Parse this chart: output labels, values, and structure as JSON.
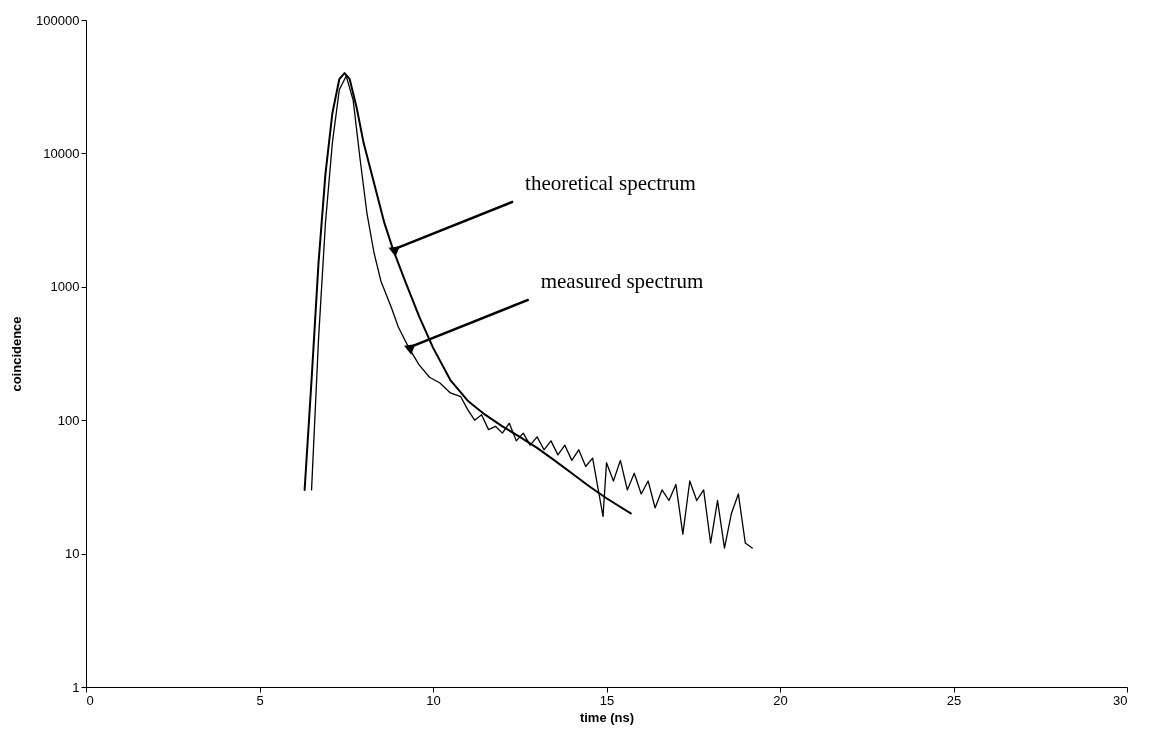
{
  "chart_data": {
    "type": "line",
    "xlabel": "time (ns)",
    "ylabel": "coincidence",
    "xlim": [
      0,
      30
    ],
    "xticks": [
      0,
      5,
      10,
      15,
      20,
      25,
      30
    ],
    "ylim": [
      1,
      100000
    ],
    "yticks": [
      1,
      10,
      100,
      1000,
      10000,
      100000
    ],
    "log": true,
    "grid": false,
    "series": [
      {
        "color": "#000000",
        "x": [
          6.3,
          6.5,
          6.7,
          6.9,
          7.1,
          7.3,
          7.45,
          7.6,
          7.8,
          8.0,
          8.3,
          8.6,
          8.85,
          9.2,
          9.6,
          10,
          10.5,
          11,
          11.5,
          12,
          12.5,
          13,
          13.5,
          14,
          14.5,
          15,
          15.7
        ],
        "values": [
          30,
          200,
          1500,
          7000,
          20000,
          36000,
          40000,
          36000,
          22000,
          12000,
          6000,
          3000,
          1900,
          1100,
          600,
          350,
          200,
          140,
          110,
          90,
          75,
          62,
          50,
          40,
          32,
          26,
          20
        ]
      },
      {
        "color": "#000000",
        "x": [
          6.5,
          6.7,
          6.9,
          7.1,
          7.3,
          7.5,
          7.7,
          7.9,
          8.1,
          8.3,
          8.5,
          8.8,
          9.0,
          9.3,
          9.6,
          9.9,
          10.2,
          10.5,
          10.8,
          11.0,
          11.2,
          11.4,
          11.6,
          11.8,
          12.0,
          12.2,
          12.4,
          12.6,
          12.8,
          13.0,
          13.2,
          13.4,
          13.6,
          13.8,
          14.0,
          14.2,
          14.4,
          14.6,
          14.9,
          15.0,
          15.2,
          15.4,
          15.6,
          15.8,
          16.0,
          16.2,
          16.4,
          16.6,
          16.8,
          17.0,
          17.2,
          17.4,
          17.6,
          17.8,
          18.0,
          18.2,
          18.4,
          18.6,
          18.8,
          19.0,
          19.2
        ],
        "values": [
          30,
          400,
          3000,
          12000,
          30000,
          38000,
          25000,
          9000,
          3500,
          1800,
          1100,
          700,
          500,
          350,
          260,
          210,
          190,
          160,
          150,
          120,
          100,
          110,
          85,
          90,
          80,
          95,
          70,
          80,
          65,
          75,
          60,
          70,
          55,
          65,
          50,
          60,
          45,
          52,
          19,
          48,
          35,
          50,
          30,
          40,
          28,
          35,
          22,
          30,
          25,
          33,
          14,
          35,
          25,
          30,
          12,
          25,
          11,
          20,
          28,
          12,
          11
        ]
      }
    ],
    "annotations": [
      {
        "text": "theoretical spectrum",
        "x": 8.85,
        "y": 1900
      },
      {
        "text": "measured spectrum",
        "x": 9.3,
        "y": 350
      }
    ]
  }
}
